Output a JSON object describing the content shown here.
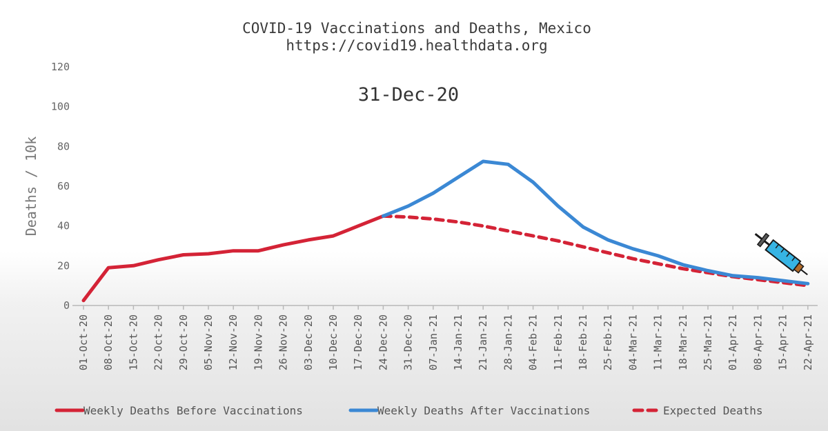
{
  "chart_data": {
    "type": "line",
    "title": "COVID-19 Vaccinations and Deaths, Mexico",
    "subtitle": "https://covid19.healthdata.org",
    "date_label": "31-Dec-20",
    "xlabel": "",
    "ylabel": "Deaths / 10k",
    "ylim": [
      0,
      120
    ],
    "yticks": [
      0,
      20,
      40,
      60,
      80,
      100,
      120
    ],
    "grid": false,
    "legend_position": "bottom",
    "categories": [
      "01-Oct-20",
      "08-Oct-20",
      "15-Oct-20",
      "22-Oct-20",
      "29-Oct-20",
      "05-Nov-20",
      "12-Nov-20",
      "19-Nov-20",
      "26-Nov-20",
      "03-Dec-20",
      "10-Dec-20",
      "17-Dec-20",
      "24-Dec-20",
      "31-Dec-20",
      "07-Jan-21",
      "14-Jan-21",
      "21-Jan-21",
      "28-Jan-21",
      "04-Feb-21",
      "11-Feb-21",
      "18-Feb-21",
      "25-Feb-21",
      "04-Mar-21",
      "11-Mar-21",
      "18-Mar-21",
      "25-Mar-21",
      "01-Apr-21",
      "08-Apr-21",
      "15-Apr-21",
      "22-Apr-21"
    ],
    "series": [
      {
        "name": "Weekly Deaths Before Vaccinations",
        "color": "#d42336",
        "style": "solid",
        "values": [
          2.5,
          19,
          20,
          23,
          25.5,
          26,
          27.5,
          27.5,
          30.5,
          33,
          35,
          40,
          45,
          null,
          null,
          null,
          null,
          null,
          null,
          null,
          null,
          null,
          null,
          null,
          null,
          null,
          null,
          null,
          null,
          null
        ]
      },
      {
        "name": "Weekly Deaths After Vaccinations",
        "color": "#3b88d4",
        "style": "solid",
        "values": [
          null,
          null,
          null,
          null,
          null,
          null,
          null,
          null,
          null,
          null,
          null,
          null,
          45,
          50,
          56.5,
          64.5,
          72.5,
          71,
          62,
          50,
          39.5,
          33,
          28.5,
          25,
          20.5,
          17.5,
          15,
          14,
          12.5,
          11
        ]
      },
      {
        "name": "Expected Deaths",
        "color": "#d42336",
        "style": "dashed",
        "values": [
          null,
          null,
          null,
          null,
          null,
          null,
          null,
          null,
          null,
          null,
          null,
          null,
          45,
          44.5,
          43.5,
          42,
          40,
          37.5,
          35,
          32.5,
          29.5,
          26.5,
          23.5,
          21,
          18.5,
          16.5,
          14.5,
          13,
          11.5,
          10
        ]
      }
    ],
    "annotation_icon": "syringe-icon"
  }
}
